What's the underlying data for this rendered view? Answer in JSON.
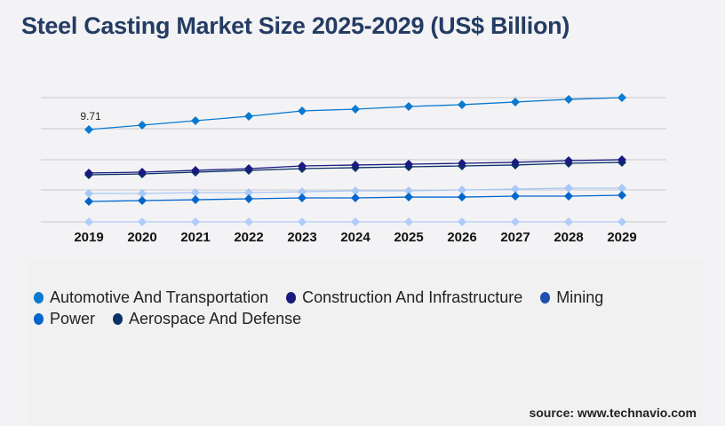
{
  "chart_data": {
    "type": "line",
    "title": "Steel Casting Market Size 2025-2029 (US$ Billion)",
    "x": [
      "2019",
      "2020",
      "2021",
      "2022",
      "2023",
      "2024",
      "2025",
      "2026",
      "2027",
      "2028",
      "2029"
    ],
    "ylim": [
      0,
      13.5
    ],
    "grid": true,
    "legend_placement": "bottom",
    "annotations": [
      {
        "x": "2019",
        "series": "Automotive And Transportation",
        "text": "9.71"
      }
    ],
    "series": [
      {
        "name": "Automotive And Transportation",
        "color": "#0a7ad0",
        "values": [
          9.71,
          10.18,
          10.64,
          11.11,
          11.67,
          11.86,
          12.14,
          12.33,
          12.61,
          12.89,
          13.07
        ]
      },
      {
        "name": "Construction And Infrastructure",
        "color": "#1a1a80",
        "values": [
          5.14,
          5.23,
          5.42,
          5.6,
          5.88,
          5.98,
          6.07,
          6.16,
          6.26,
          6.44,
          6.54
        ]
      },
      {
        "name": "Mining",
        "color": "#1e4fb0",
        "line_color": "#a8c8f8",
        "values": [
          2.99,
          2.99,
          3.08,
          3.08,
          3.17,
          3.27,
          3.27,
          3.36,
          3.45,
          3.55,
          3.55
        ]
      },
      {
        "name": "Power",
        "color": "#0066cc",
        "values": [
          2.15,
          2.24,
          2.33,
          2.43,
          2.52,
          2.52,
          2.61,
          2.61,
          2.71,
          2.71,
          2.8
        ]
      },
      {
        "name": "Aerospace And Defense",
        "color": "#0a3266",
        "values": [
          4.95,
          5.04,
          5.23,
          5.42,
          5.6,
          5.7,
          5.79,
          5.88,
          5.98,
          6.16,
          6.26
        ]
      },
      {
        "color": "#b0ccf8",
        "values": [
          0,
          0,
          0,
          0,
          0,
          0,
          0,
          0,
          0,
          0,
          0
        ]
      }
    ]
  },
  "source": "source: www.technavio.com"
}
